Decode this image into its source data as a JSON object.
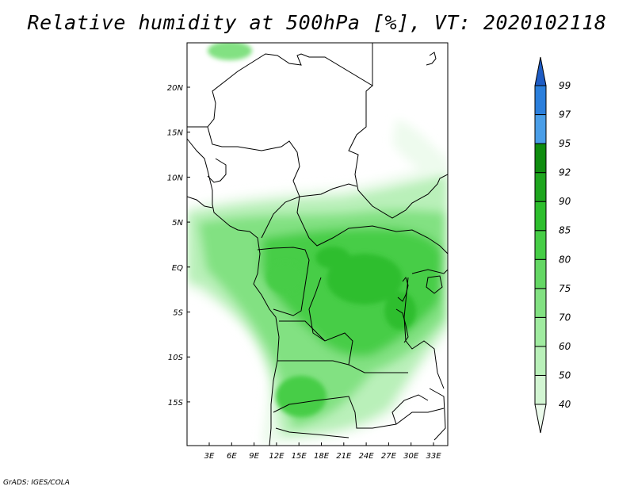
{
  "title": "Relative humidity at 500hPa [%], VT: 2020102118",
  "credit": "GrADS: IGES/COLA",
  "map": {
    "lon_labels": [
      "3E",
      "6E",
      "9E",
      "12E",
      "15E",
      "18E",
      "21E",
      "24E",
      "27E",
      "30E",
      "33E"
    ],
    "lat_labels": [
      "20N",
      "15N",
      "10N",
      "5N",
      "EQ",
      "5S",
      "10S",
      "15S"
    ]
  },
  "colorbar": {
    "levels": [
      "40",
      "50",
      "60",
      "70",
      "75",
      "80",
      "85",
      "90",
      "92",
      "95",
      "97",
      "99"
    ],
    "colors": [
      "#ebfaeb",
      "#d2f5d2",
      "#b9f0b9",
      "#a0eba0",
      "#82e182",
      "#64d764",
      "#46cd46",
      "#2dbe2d",
      "#1ea51e",
      "#0f8c0f",
      "#4a9ee8",
      "#2b7fdc",
      "#1e5cc4"
    ]
  }
}
